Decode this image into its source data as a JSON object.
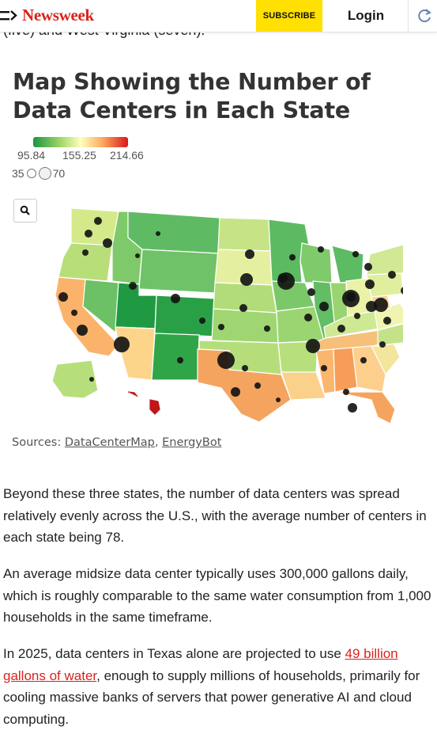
{
  "header": {
    "brand": "Newsweek",
    "subscribe_label": "SUBSCRIBE",
    "login_label": "Login",
    "menu_icon": "menu-icon",
    "refresh_icon": "refresh-icon"
  },
  "cutoff_text": "(five) and West Virginia (seven).",
  "map": {
    "title": "Map Showing the Number of Data Centers in Each State",
    "color_legend": {
      "min": "95.84",
      "mid": "155.25",
      "max": "214.66",
      "colors": [
        "#1a9641",
        "#a6d96a",
        "#ffffbf",
        "#fdae61",
        "#d7191c"
      ]
    },
    "size_legend": {
      "small": "35",
      "large": "70"
    },
    "search_icon": "search-icon",
    "sources_prefix": "Sources: ",
    "source_1": "DataCenterMap",
    "source_sep": ", ",
    "source_2": "EnergyBot"
  },
  "article": {
    "p1": "Beyond these three states, the number of data centers was spread relatively evenly across the U.S., with the average number of centers in each state being 78.",
    "p2": "An average midsize data center typically uses 300,000 gallons daily, which is roughly comparable to the same water consumption from 1,000 households in the same timeframe.",
    "p3_before": "In 2025, data centers in Texas alone are projected to use ",
    "p3_link": "49 billion gallons of water",
    "p3_after": ", enough to supply millions of households, primarily for cooling massive banks of servers that power generative AI and cloud computing."
  }
}
